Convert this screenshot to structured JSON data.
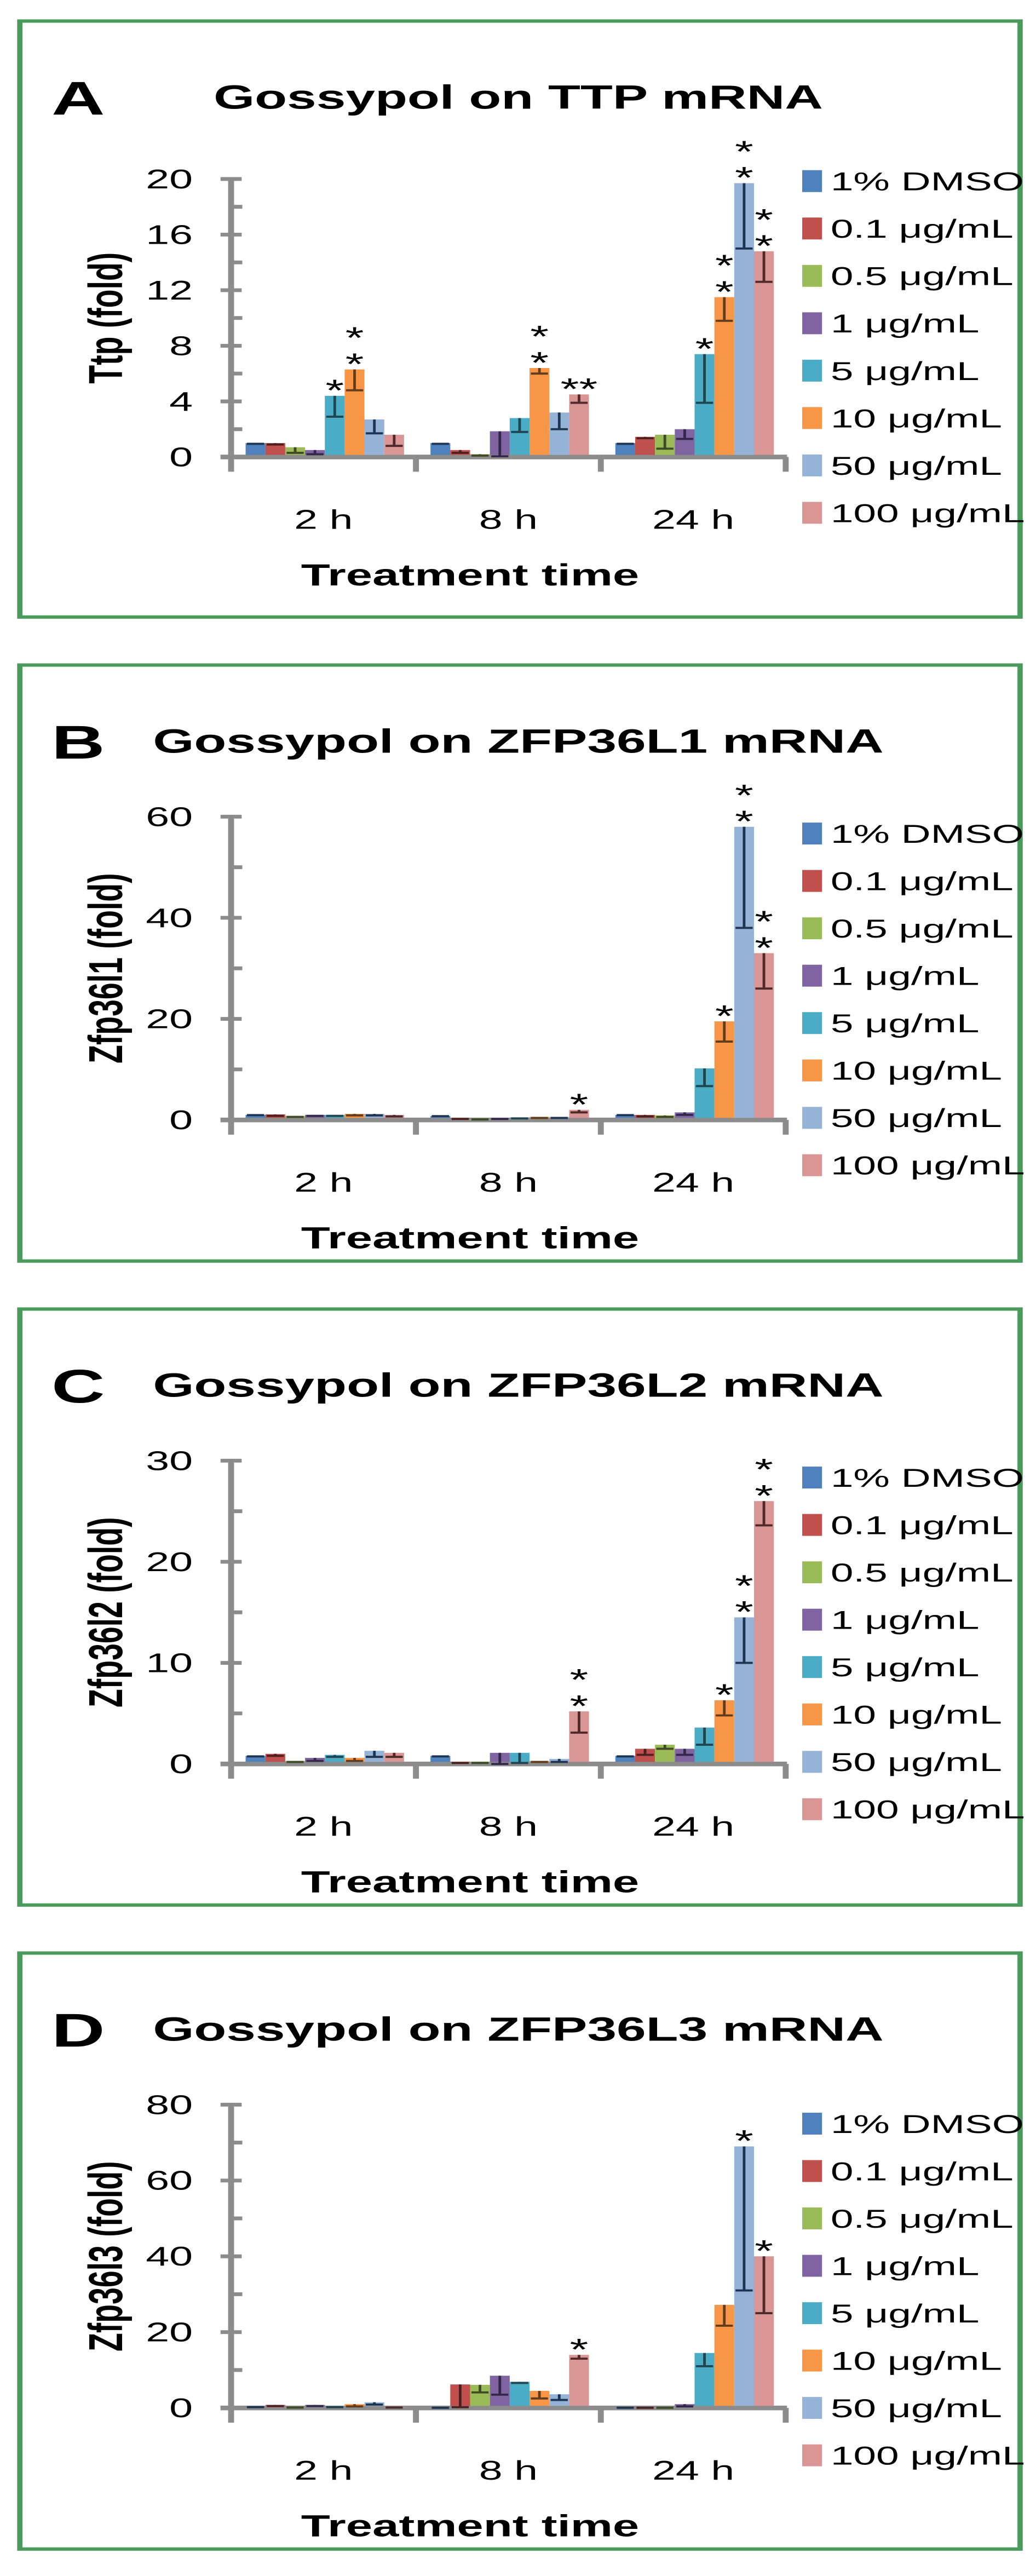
{
  "colors": {
    "frame": "#4a9a5c",
    "axis": "#8c8c8c",
    "series": [
      "#4f81bd",
      "#c0504d",
      "#9bbb59",
      "#8064a2",
      "#4bacc6",
      "#f79646",
      "#95b3d7",
      "#d99694"
    ],
    "error": [
      "#1f3450",
      "#4d1f1e",
      "#3e4b24",
      "#33284a",
      "#1e4550",
      "#633c1c",
      "#1f3450",
      "#4d2a29"
    ]
  },
  "chart_data": [
    {
      "type": "bar",
      "panel_label": "A",
      "title": "Gossypol on TTP mRNA",
      "xlabel": "Treatment time",
      "ylabel": "Ttp (fold)",
      "ylim": [
        0,
        20
      ],
      "yticks": [
        "0",
        "4",
        "8",
        "12",
        "16",
        "20"
      ],
      "ytick_values": [
        0,
        4,
        8,
        12,
        16,
        20
      ],
      "categories": [
        "2 h",
        "8 h",
        "24 h"
      ],
      "legend_position": "right",
      "series": [
        {
          "name": "1% DMSO",
          "values": [
            1.0,
            1.0,
            1.0
          ],
          "errors": [
            0.05,
            0.05,
            0.05
          ]
        },
        {
          "name": "0.1 μg/mL",
          "values": [
            1.0,
            0.5,
            1.45
          ],
          "errors": [
            0.1,
            0.2,
            0.1
          ]
        },
        {
          "name": "0.5 μg/mL",
          "values": [
            0.7,
            0.2,
            1.6
          ],
          "errors": [
            0.4,
            0.1,
            1.0
          ]
        },
        {
          "name": "1 μg/mL",
          "values": [
            0.5,
            1.85,
            2.0
          ],
          "errors": [
            0.3,
            1.8,
            0.7
          ]
        },
        {
          "name": "5 μg/mL",
          "values": [
            4.4,
            2.8,
            7.4
          ],
          "errors": [
            1.5,
            1.0,
            3.5
          ]
        },
        {
          "name": "10 μg/mL",
          "values": [
            6.3,
            6.4,
            11.5
          ],
          "errors": [
            1.5,
            0.4,
            1.7
          ]
        },
        {
          "name": "50 μg/mL",
          "values": [
            2.7,
            3.2,
            19.7
          ],
          "errors": [
            1.0,
            1.2,
            4.7
          ]
        },
        {
          "name": "100 μg/mL",
          "values": [
            1.6,
            4.5,
            14.8
          ],
          "errors": [
            0.8,
            0.6,
            2.2
          ]
        }
      ],
      "annotations": [
        {
          "category": 0,
          "series": 4,
          "text": "*",
          "stacked": false
        },
        {
          "category": 0,
          "series": 5,
          "text": "**",
          "stacked": true
        },
        {
          "category": 1,
          "series": 5,
          "text": "**",
          "stacked": true
        },
        {
          "category": 1,
          "series": 7,
          "text": "**",
          "stacked": false
        },
        {
          "category": 2,
          "series": 4,
          "text": "*",
          "stacked": false
        },
        {
          "category": 2,
          "series": 5,
          "text": "**",
          "stacked": true
        },
        {
          "category": 2,
          "series": 6,
          "text": "**",
          "stacked": true
        },
        {
          "category": 2,
          "series": 7,
          "text": "**",
          "stacked": true
        }
      ]
    },
    {
      "type": "bar",
      "panel_label": "B",
      "title": "Gossypol on ZFP36L1 mRNA",
      "xlabel": "Treatment time",
      "ylabel": "Zfp36l1 (fold)",
      "ylim": [
        0,
        60
      ],
      "yticks": [
        "0",
        "20",
        "40",
        "60"
      ],
      "ytick_values": [
        0,
        20,
        40,
        60
      ],
      "categories": [
        "2 h",
        "8 h",
        "24 h"
      ],
      "legend_position": "right",
      "series": [
        {
          "name": "1% DMSO",
          "values": [
            1.0,
            0.8,
            1.0
          ],
          "errors": [
            0.05,
            0.05,
            0.05
          ]
        },
        {
          "name": "0.1 μg/mL",
          "values": [
            1.1,
            0.3,
            1.0
          ],
          "errors": [
            0.3,
            0.1,
            0.3
          ]
        },
        {
          "name": "0.5 μg/mL",
          "values": [
            0.8,
            0.2,
            0.9
          ],
          "errors": [
            0.2,
            0.1,
            0.3
          ]
        },
        {
          "name": "1 μg/mL",
          "values": [
            1.0,
            0.3,
            1.5
          ],
          "errors": [
            0.2,
            0.1,
            0.5
          ]
        },
        {
          "name": "5 μg/mL",
          "values": [
            1.0,
            0.5,
            10.2
          ],
          "errors": [
            0.2,
            0.2,
            3.5
          ]
        },
        {
          "name": "10 μg/mL",
          "values": [
            1.2,
            0.6,
            19.5
          ],
          "errors": [
            0.3,
            0.2,
            4.0
          ]
        },
        {
          "name": "50 μg/mL",
          "values": [
            1.2,
            0.6,
            58
          ],
          "errors": [
            0.3,
            0.2,
            20
          ]
        },
        {
          "name": "100 μg/mL",
          "values": [
            1.0,
            2.0,
            33
          ],
          "errors": [
            0.3,
            0.5,
            7
          ]
        }
      ],
      "annotations": [
        {
          "category": 1,
          "series": 7,
          "text": "*",
          "stacked": false
        },
        {
          "category": 2,
          "series": 5,
          "text": "*",
          "stacked": false
        },
        {
          "category": 2,
          "series": 6,
          "text": "**",
          "stacked": true
        },
        {
          "category": 2,
          "series": 7,
          "text": "**",
          "stacked": true
        }
      ]
    },
    {
      "type": "bar",
      "panel_label": "C",
      "title": "Gossypol on ZFP36L2 mRNA",
      "xlabel": "Treatment time",
      "ylabel": "Zfp36l2 (fold)",
      "ylim": [
        0,
        30
      ],
      "yticks": [
        "0",
        "10",
        "20",
        "30"
      ],
      "ytick_values": [
        0,
        10,
        20,
        30
      ],
      "categories": [
        "2 h",
        "8 h",
        "24 h"
      ],
      "legend_position": "right",
      "series": [
        {
          "name": "1% DMSO",
          "values": [
            0.8,
            0.8,
            0.8
          ],
          "errors": [
            0.05,
            0.05,
            0.05
          ]
        },
        {
          "name": "0.1 μg/mL",
          "values": [
            1.0,
            0.2,
            1.5
          ],
          "errors": [
            0.2,
            0.1,
            0.6
          ]
        },
        {
          "name": "0.5 μg/mL",
          "values": [
            0.3,
            0.2,
            1.9
          ],
          "errors": [
            0.1,
            0.1,
            0.4
          ]
        },
        {
          "name": "1 μg/mL",
          "values": [
            0.6,
            1.1,
            1.5
          ],
          "errors": [
            0.3,
            1.1,
            0.6
          ]
        },
        {
          "name": "5 μg/mL",
          "values": [
            0.9,
            1.1,
            3.6
          ],
          "errors": [
            0.2,
            1.0,
            1.7
          ]
        },
        {
          "name": "10 μg/mL",
          "values": [
            0.6,
            0.3,
            6.3
          ],
          "errors": [
            0.3,
            0.1,
            1.5
          ]
        },
        {
          "name": "50 μg/mL",
          "values": [
            1.3,
            0.5,
            14.5
          ],
          "errors": [
            0.6,
            0.3,
            4.5
          ]
        },
        {
          "name": "100 μg/mL",
          "values": [
            1.1,
            5.2,
            26
          ],
          "errors": [
            0.4,
            2.1,
            2.4
          ]
        }
      ],
      "annotations": [
        {
          "category": 1,
          "series": 7,
          "text": "**",
          "stacked": true
        },
        {
          "category": 2,
          "series": 5,
          "text": "*",
          "stacked": false
        },
        {
          "category": 2,
          "series": 6,
          "text": "**",
          "stacked": true
        },
        {
          "category": 2,
          "series": 7,
          "text": "**",
          "stacked": true
        }
      ]
    },
    {
      "type": "bar",
      "panel_label": "D",
      "title": "Gossypol on ZFP36L3 mRNA",
      "xlabel": "Treatment time",
      "ylabel": "Zfp36l3 (fold)",
      "ylim": [
        0,
        80
      ],
      "yticks": [
        "0",
        "20",
        "40",
        "60",
        "80"
      ],
      "ytick_values": [
        0,
        20,
        40,
        60,
        80
      ],
      "categories": [
        "2 h",
        "8 h",
        "24 h"
      ],
      "legend_position": "right",
      "series": [
        {
          "name": "1% DMSO",
          "values": [
            0.3,
            0.1,
            0.1
          ],
          "errors": [
            0.1,
            0.05,
            0.05
          ]
        },
        {
          "name": "0.1 μg/mL",
          "values": [
            0.8,
            6.2,
            0.1
          ],
          "errors": [
            0.3,
            6.0,
            0.05
          ]
        },
        {
          "name": "0.5 μg/mL",
          "values": [
            0.2,
            6.1,
            0.1
          ],
          "errors": [
            0.1,
            2.0,
            0.05
          ]
        },
        {
          "name": "1 μg/mL",
          "values": [
            0.8,
            8.5,
            1.0
          ],
          "errors": [
            0.3,
            5.0,
            0.6
          ]
        },
        {
          "name": "5 μg/mL",
          "values": [
            0.3,
            6.9,
            14.5
          ],
          "errors": [
            0.1,
            0.3,
            3.5
          ]
        },
        {
          "name": "10 μg/mL",
          "values": [
            1.0,
            4.5,
            27.2
          ],
          "errors": [
            0.6,
            2.0,
            5.5
          ]
        },
        {
          "name": "50 μg/mL",
          "values": [
            1.5,
            3.6,
            69
          ],
          "errors": [
            0.6,
            1.5,
            38
          ]
        },
        {
          "name": "100 μg/mL",
          "values": [
            0.3,
            14,
            40
          ],
          "errors": [
            0.2,
            1.0,
            15
          ]
        }
      ],
      "annotations": [
        {
          "category": 1,
          "series": 7,
          "text": "*",
          "stacked": false
        },
        {
          "category": 2,
          "series": 6,
          "text": "*",
          "stacked": false
        },
        {
          "category": 2,
          "series": 7,
          "text": "*",
          "stacked": false
        }
      ]
    }
  ]
}
